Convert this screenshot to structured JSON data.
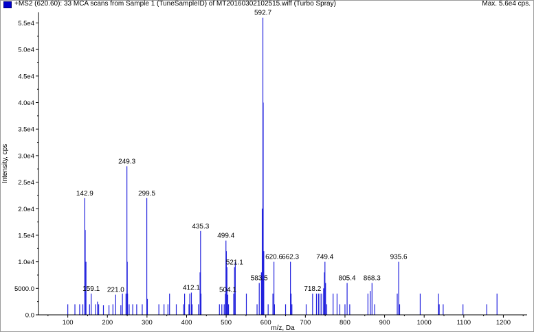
{
  "header": {
    "title": "+MS2 (620.60): 33 MCA scans from Sample 1 (TuneSampleID) of MT20160302102515.wiff (Turbo Spray)",
    "max_label": "Max. 5.6e4 cps."
  },
  "colors": {
    "series": "#2222dd",
    "axis": "#000000"
  },
  "chart_data": {
    "type": "bar",
    "title": "+MS2 (620.60): 33 MCA scans from Sample 1 (TuneSampleID) of MT20160302102515.wiff (Turbo Spray)",
    "xlabel": "m/z, Da",
    "ylabel": "Intensity, cps",
    "xlim": [
      26,
      1260
    ],
    "ylim": [
      0,
      57000
    ],
    "x_ticks": [
      100,
      200,
      300,
      400,
      500,
      600,
      700,
      800,
      900,
      1000,
      1100,
      1200
    ],
    "y_ticks": [
      {
        "value": 0,
        "label": "0.0"
      },
      {
        "value": 5000,
        "label": "5000.0"
      },
      {
        "value": 10000,
        "label": "1.0e4"
      },
      {
        "value": 15000,
        "label": "1.5e4"
      },
      {
        "value": 20000,
        "label": "2.0e4"
      },
      {
        "value": 25000,
        "label": "2.5e4"
      },
      {
        "value": 30000,
        "label": "3.0e4"
      },
      {
        "value": 35000,
        "label": "3.5e4"
      },
      {
        "value": 40000,
        "label": "4.0e4"
      },
      {
        "value": 45000,
        "label": "4.5e4"
      },
      {
        "value": 50000,
        "label": "5.0e4"
      },
      {
        "value": 55000,
        "label": "5.5e4"
      }
    ],
    "peaks": [
      {
        "mz": 100.0,
        "y": 2000
      },
      {
        "mz": 118.0,
        "y": 2000
      },
      {
        "mz": 130.0,
        "y": 2000
      },
      {
        "mz": 138.0,
        "y": 2000
      },
      {
        "mz": 142.9,
        "y": 22000,
        "label": "142.9"
      },
      {
        "mz": 144.0,
        "y": 16000
      },
      {
        "mz": 146.0,
        "y": 10000
      },
      {
        "mz": 155.0,
        "y": 2000
      },
      {
        "mz": 159.1,
        "y": 4000,
        "label": "159.1"
      },
      {
        "mz": 170.0,
        "y": 2000
      },
      {
        "mz": 175.0,
        "y": 2500
      },
      {
        "mz": 178.0,
        "y": 2000
      },
      {
        "mz": 190.0,
        "y": 1800
      },
      {
        "mz": 204.0,
        "y": 1800
      },
      {
        "mz": 214.0,
        "y": 2000
      },
      {
        "mz": 221.0,
        "y": 3800,
        "label": "221.0"
      },
      {
        "mz": 234.0,
        "y": 1800
      },
      {
        "mz": 238.0,
        "y": 4000
      },
      {
        "mz": 247.0,
        "y": 4000
      },
      {
        "mz": 249.3,
        "y": 28000,
        "label": "249.3"
      },
      {
        "mz": 250.2,
        "y": 10000
      },
      {
        "mz": 251.0,
        "y": 4000
      },
      {
        "mz": 255.0,
        "y": 2000
      },
      {
        "mz": 264.0,
        "y": 2000
      },
      {
        "mz": 274.0,
        "y": 2000
      },
      {
        "mz": 288.0,
        "y": 2000
      },
      {
        "mz": 299.5,
        "y": 22000,
        "label": "299.5"
      },
      {
        "mz": 301.0,
        "y": 3000
      },
      {
        "mz": 330.0,
        "y": 2000
      },
      {
        "mz": 343.0,
        "y": 2000
      },
      {
        "mz": 353.0,
        "y": 2000
      },
      {
        "mz": 357.0,
        "y": 4000
      },
      {
        "mz": 374.0,
        "y": 2000
      },
      {
        "mz": 392.0,
        "y": 2000
      },
      {
        "mz": 395.0,
        "y": 4000
      },
      {
        "mz": 406.0,
        "y": 2000
      },
      {
        "mz": 408.0,
        "y": 4000
      },
      {
        "mz": 412.1,
        "y": 4200,
        "label": "412.1"
      },
      {
        "mz": 414.0,
        "y": 2000
      },
      {
        "mz": 430.0,
        "y": 2000
      },
      {
        "mz": 434.0,
        "y": 8000
      },
      {
        "mz": 435.3,
        "y": 15800,
        "label": "435.3"
      },
      {
        "mz": 436.5,
        "y": 4000
      },
      {
        "mz": 483.0,
        "y": 2000
      },
      {
        "mz": 489.0,
        "y": 2000
      },
      {
        "mz": 495.0,
        "y": 2000
      },
      {
        "mz": 498.0,
        "y": 4000
      },
      {
        "mz": 499.4,
        "y": 14000,
        "label": "499.4"
      },
      {
        "mz": 500.5,
        "y": 12000
      },
      {
        "mz": 502.0,
        "y": 9000
      },
      {
        "mz": 504.1,
        "y": 3800,
        "label": "504.1"
      },
      {
        "mz": 506.0,
        "y": 2000
      },
      {
        "mz": 519.0,
        "y": 4000
      },
      {
        "mz": 521.1,
        "y": 9000,
        "label": "521.1"
      },
      {
        "mz": 523.0,
        "y": 10000
      },
      {
        "mz": 551.0,
        "y": 4000
      },
      {
        "mz": 578.0,
        "y": 2000
      },
      {
        "mz": 583.5,
        "y": 6000,
        "label": "583.5"
      },
      {
        "mz": 589.0,
        "y": 8000
      },
      {
        "mz": 591.0,
        "y": 20000
      },
      {
        "mz": 592.7,
        "y": 56000,
        "label": "592.7"
      },
      {
        "mz": 593.5,
        "y": 40000
      },
      {
        "mz": 595.0,
        "y": 12000
      },
      {
        "mz": 606.0,
        "y": 2000
      },
      {
        "mz": 618.0,
        "y": 4000
      },
      {
        "mz": 620.6,
        "y": 10000,
        "label": "620.6"
      },
      {
        "mz": 622.0,
        "y": 2000
      },
      {
        "mz": 650.0,
        "y": 2000
      },
      {
        "mz": 662.3,
        "y": 10000,
        "label": "662.3"
      },
      {
        "mz": 664.0,
        "y": 4000
      },
      {
        "mz": 666.0,
        "y": 2000
      },
      {
        "mz": 702.0,
        "y": 2000
      },
      {
        "mz": 718.2,
        "y": 4000,
        "label": "718.2"
      },
      {
        "mz": 728.0,
        "y": 4000
      },
      {
        "mz": 733.0,
        "y": 4000
      },
      {
        "mz": 737.0,
        "y": 4000
      },
      {
        "mz": 741.0,
        "y": 4000
      },
      {
        "mz": 746.0,
        "y": 5000
      },
      {
        "mz": 748.0,
        "y": 8000
      },
      {
        "mz": 749.4,
        "y": 10000,
        "label": "749.4"
      },
      {
        "mz": 751.0,
        "y": 6000
      },
      {
        "mz": 754.0,
        "y": 2000
      },
      {
        "mz": 770.0,
        "y": 4000
      },
      {
        "mz": 780.0,
        "y": 4000
      },
      {
        "mz": 787.0,
        "y": 2000
      },
      {
        "mz": 800.0,
        "y": 2000
      },
      {
        "mz": 805.4,
        "y": 6000,
        "label": "805.4"
      },
      {
        "mz": 812.0,
        "y": 2000
      },
      {
        "mz": 858.0,
        "y": 4000
      },
      {
        "mz": 864.0,
        "y": 4500
      },
      {
        "mz": 868.3,
        "y": 6000,
        "label": "868.3"
      },
      {
        "mz": 875.0,
        "y": 2000
      },
      {
        "mz": 932.0,
        "y": 4000
      },
      {
        "mz": 935.6,
        "y": 10000,
        "label": "935.6"
      },
      {
        "mz": 938.0,
        "y": 2000
      },
      {
        "mz": 990.0,
        "y": 4000
      },
      {
        "mz": 1036.0,
        "y": 4000
      },
      {
        "mz": 1038.0,
        "y": 2000
      },
      {
        "mz": 1048.0,
        "y": 2000
      },
      {
        "mz": 1098.0,
        "y": 2000
      },
      {
        "mz": 1158.0,
        "y": 2000
      },
      {
        "mz": 1184.0,
        "y": 4000
      }
    ]
  }
}
